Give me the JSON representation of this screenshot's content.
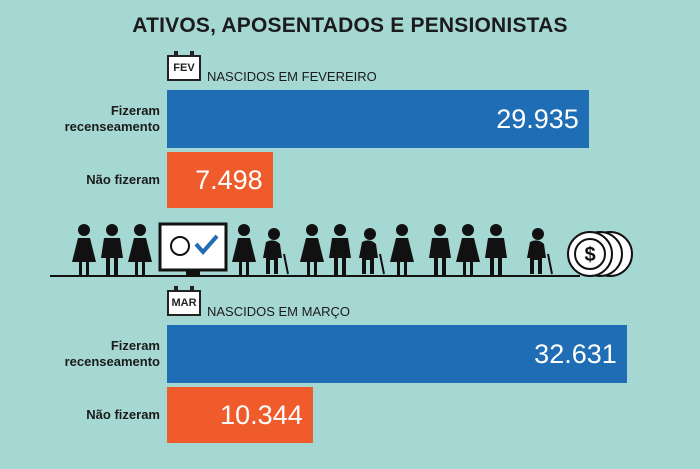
{
  "title": "ATIVOS, APOSENTADOS E PENSIONISTAS",
  "chart_data": [
    {
      "type": "bar",
      "badge": "FEV",
      "title": "NASCIDOS EM FEVEREIRO",
      "categories": [
        "Fizeram recenseamento",
        "Não fizeram"
      ],
      "values": [
        29935,
        7498
      ],
      "value_labels": [
        "29.935",
        "7.498"
      ],
      "colors": [
        "#1f6db4",
        "#ef5b2b"
      ]
    },
    {
      "type": "bar",
      "badge": "MAR",
      "title": "NASCIDOS EM MARÇO",
      "categories": [
        "Fizeram recenseamento",
        "Não fizeram"
      ],
      "values": [
        32631,
        10344
      ],
      "value_labels": [
        "32.631",
        "10.344"
      ],
      "colors": [
        "#1f6db4",
        "#ef5b2b"
      ]
    }
  ]
}
